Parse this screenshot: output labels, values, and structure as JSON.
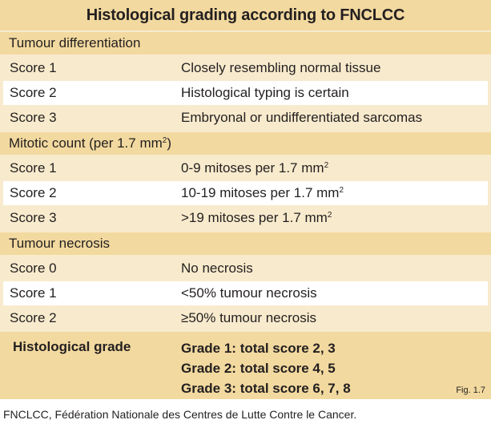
{
  "title": "Histological grading according to FNCLCC",
  "sections": {
    "differentiation": {
      "heading": "Tumour differentiation",
      "rows": [
        {
          "score": "Score 1",
          "desc": "Closely resembling normal tissue"
        },
        {
          "score": "Score 2",
          "desc": "Histological typing is certain"
        },
        {
          "score": "Score 3",
          "desc": "Embryonal or undifferentiated sarcomas"
        }
      ]
    },
    "mitotic": {
      "heading": "Mitotic count (per 1.7 mm",
      "heading_sup": "2",
      "heading_end": ")",
      "rows": [
        {
          "score": "Score 1",
          "desc": "0-9 mitoses per 1.7 mm",
          "sup": "2"
        },
        {
          "score": "Score 2",
          "desc": "10-19 mitoses per 1.7 mm",
          "sup": "2"
        },
        {
          "score": "Score 3",
          "desc": ">19 mitoses per 1.7 mm",
          "sup": "2"
        }
      ]
    },
    "necrosis": {
      "heading": "Tumour necrosis",
      "rows": [
        {
          "score": "Score 0",
          "desc": "No necrosis"
        },
        {
          "score": "Score 1",
          "desc": "<50% tumour necrosis"
        },
        {
          "score": "Score 2",
          "desc": "≥50% tumour necrosis"
        }
      ]
    }
  },
  "grade": {
    "label": "Histological grade",
    "items": [
      "Grade 1: total score 2, 3",
      "Grade 2: total score 4, 5",
      "Grade 3: total score 6, 7, 8"
    ]
  },
  "figure_label": "Fig. 1.7",
  "footnote": "FNCLCC, Fédération Nationale des Centres de Lutte Contre le Cancer."
}
